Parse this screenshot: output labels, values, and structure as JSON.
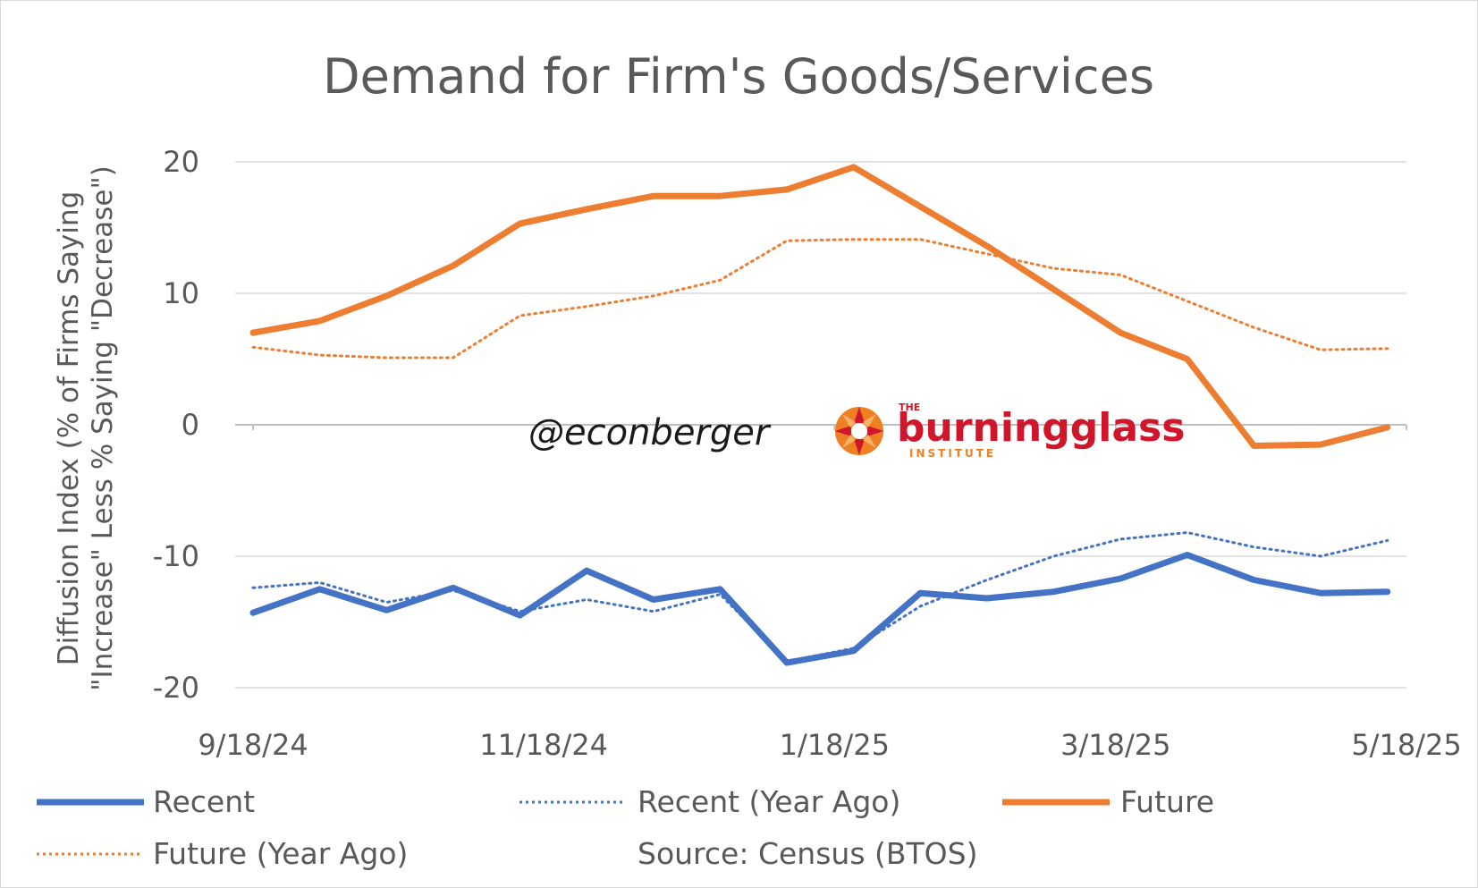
{
  "chart_data": {
    "type": "line",
    "title": "Demand for Firm's Goods/Services",
    "ylabel_lines": [
      "Diffusion Index (% of Firms Saying",
      "\"Increase\" Less % Saying \"Decrease\")"
    ],
    "xlabel": "",
    "ylim": [
      -20,
      20
    ],
    "yticks": [
      20,
      10,
      0,
      -10,
      -20
    ],
    "ytick_labels": [
      "20",
      "10",
      "0",
      "-10",
      "-20"
    ],
    "x": [
      "9/18/24",
      "10/2/24",
      "10/16/24",
      "10/30/24",
      "11/13/24",
      "11/27/24",
      "12/11/24",
      "12/25/24",
      "1/8/25",
      "1/22/25",
      "2/5/25",
      "2/19/25",
      "3/5/25",
      "3/19/25",
      "4/2/25",
      "4/16/25",
      "4/30/25",
      "5/14/25"
    ],
    "xtick_labels": [
      "9/18/24",
      "11/18/24",
      "1/18/25",
      "3/18/25",
      "5/18/25"
    ],
    "xtick_dates": [
      "2024-09-18",
      "2024-11-18",
      "2025-01-18",
      "2025-03-18",
      "2025-05-18"
    ],
    "grid": "horizontal",
    "legend_position": "bottom",
    "series": [
      {
        "name": "Recent",
        "color": "#4472c4",
        "style": "solid-thick",
        "values": [
          -14.3,
          -12.5,
          -14.1,
          -12.4,
          -14.5,
          -11.1,
          -13.3,
          -12.5,
          -18.1,
          -17.2,
          -12.8,
          -13.2,
          -12.7,
          -11.7,
          -9.9,
          -11.8,
          -12.8,
          -12.7
        ]
      },
      {
        "name": "Recent (Year Ago)",
        "color": "#4472c4",
        "style": "dotted",
        "values": [
          -12.4,
          -12.0,
          -13.5,
          -12.6,
          -14.2,
          -13.3,
          -14.2,
          -12.9,
          -18.0,
          -17.0,
          -13.8,
          -11.8,
          -10.0,
          -8.7,
          -8.2,
          -9.3,
          -10.0,
          -8.8
        ]
      },
      {
        "name": "Future",
        "color": "#ed7d31",
        "style": "solid-thick",
        "values": [
          7.0,
          7.9,
          9.8,
          12.1,
          15.3,
          16.4,
          17.4,
          17.4,
          17.9,
          19.6,
          16.6,
          13.6,
          10.3,
          7.0,
          5.0,
          -1.6,
          -1.5,
          -0.2
        ]
      },
      {
        "name": "Future (Year Ago)",
        "color": "#ed7d31",
        "style": "dotted",
        "values": [
          5.9,
          5.3,
          5.1,
          5.1,
          8.3,
          9.0,
          9.8,
          11.0,
          14.0,
          14.1,
          14.1,
          13.0,
          11.9,
          11.4,
          9.4,
          7.4,
          5.7,
          5.8
        ]
      }
    ],
    "legend_entries": [
      "Recent",
      "Recent (Year Ago)",
      "Future",
      "Future (Year Ago)"
    ],
    "annotations": {
      "source": "Source: Census (BTOS)",
      "watermark": "@econberger",
      "logo_small": "THE",
      "logo_main": "burningglass",
      "logo_sub": "INSTITUTE"
    }
  }
}
